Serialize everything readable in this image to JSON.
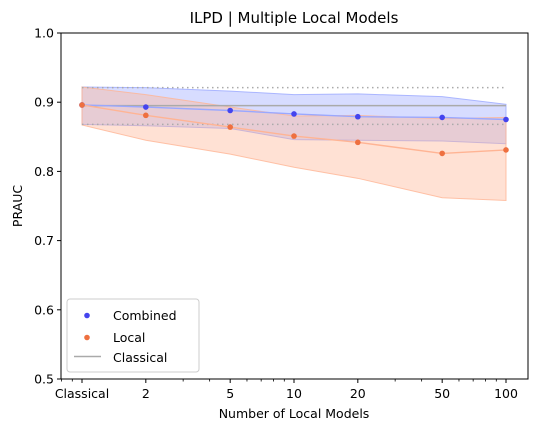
{
  "chart_data": {
    "type": "line",
    "title": "ILPD | Multiple Local Models",
    "xlabel": "Number of Local Models",
    "ylabel": "PRAUC",
    "xscale": "log",
    "x": [
      1,
      2,
      5,
      10,
      20,
      50,
      100
    ],
    "xtick_labels": [
      "Classical",
      "2",
      "5",
      "10",
      "20",
      "50",
      "100"
    ],
    "ylim": [
      0.5,
      1.0
    ],
    "yticks": [
      0.5,
      0.6,
      0.7,
      0.8,
      0.9,
      1.0
    ],
    "ytick_labels": [
      "0.5",
      "0.6",
      "0.7",
      "0.8",
      "0.9",
      "1.0"
    ],
    "grid": false,
    "legend_position": "lower-left",
    "series": [
      {
        "name": "Combined",
        "color": "#4444ee",
        "band_color": "#9aa8ff",
        "values": [
          0.896,
          0.893,
          0.888,
          0.883,
          0.879,
          0.878,
          0.875
        ],
        "upper": [
          0.922,
          0.921,
          0.916,
          0.911,
          0.912,
          0.908,
          0.897
        ],
        "lower": [
          0.868,
          0.866,
          0.862,
          0.846,
          0.845,
          0.844,
          0.84
        ]
      },
      {
        "name": "Local",
        "color": "#ee7040",
        "band_color": "#ffb494",
        "values": [
          0.896,
          0.881,
          0.864,
          0.851,
          0.842,
          0.826,
          0.831
        ],
        "upper": [
          0.922,
          0.911,
          0.893,
          0.88,
          0.881,
          0.876,
          0.878
        ],
        "lower": [
          0.867,
          0.845,
          0.825,
          0.806,
          0.79,
          0.762,
          0.758
        ]
      }
    ],
    "classical": {
      "name": "Classical",
      "color": "#aaaaaa",
      "value": 0.895,
      "upper": 0.921,
      "lower": 0.868
    }
  }
}
